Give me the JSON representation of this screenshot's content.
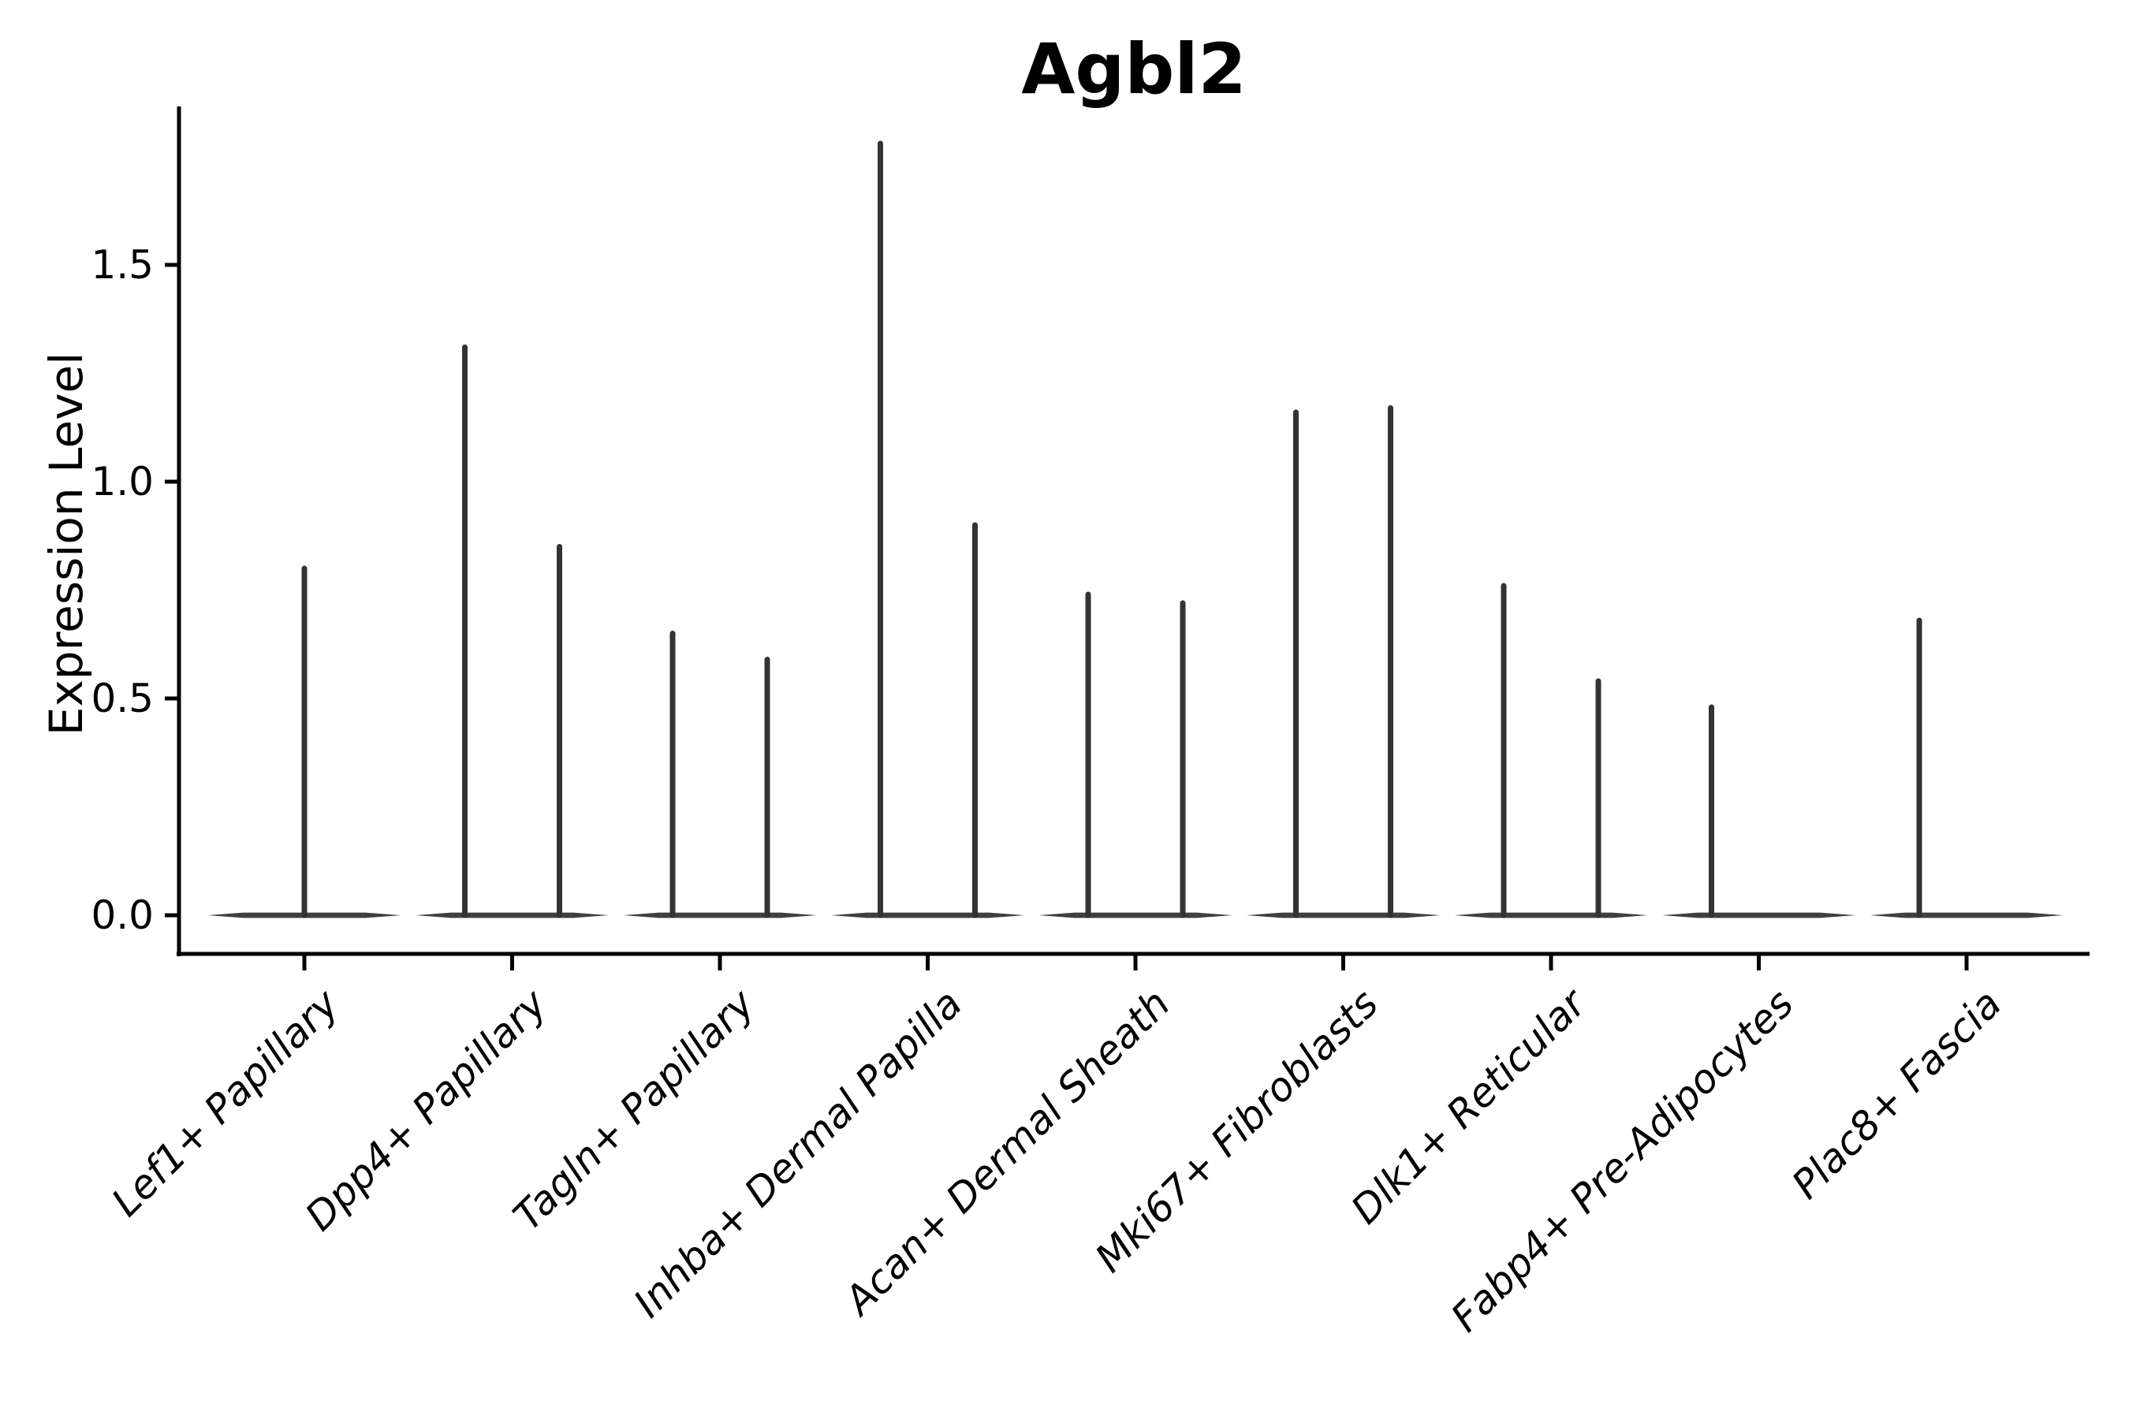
{
  "chart_data": {
    "type": "violin",
    "title": "Agbl2",
    "ylabel": "Expression Level",
    "xlabel": "",
    "y_axis": {
      "tick_values": [
        0.0,
        0.5,
        1.0,
        1.5
      ],
      "tick_labels": [
        "0.0",
        "0.5",
        "1.0",
        "1.5"
      ],
      "range": [
        -0.09,
        1.87
      ],
      "grid": false
    },
    "legend": null,
    "categories": [
      {
        "label": "Lef1+ Papillary",
        "spikes": [
          {
            "pos": "center",
            "value": 0.8
          }
        ]
      },
      {
        "label": "Dpp4+ Papillary",
        "spikes": [
          {
            "pos": "left",
            "value": 1.31
          },
          {
            "pos": "right",
            "value": 0.85
          }
        ]
      },
      {
        "label": "Tagln+ Papillary",
        "spikes": [
          {
            "pos": "left",
            "value": 0.65
          },
          {
            "pos": "right",
            "value": 0.59
          }
        ]
      },
      {
        "label": "Inhba+ Dermal Papilla",
        "spikes": [
          {
            "pos": "left",
            "value": 1.78
          },
          {
            "pos": "right",
            "value": 0.9
          }
        ]
      },
      {
        "label": "Acan+ Dermal Sheath",
        "spikes": [
          {
            "pos": "left",
            "value": 0.74
          },
          {
            "pos": "right",
            "value": 0.72
          }
        ]
      },
      {
        "label": "Mki67+ Fibroblasts",
        "spikes": [
          {
            "pos": "left",
            "value": 1.16
          },
          {
            "pos": "right",
            "value": 1.17
          }
        ]
      },
      {
        "label": "Dlk1+ Reticular",
        "spikes": [
          {
            "pos": "left",
            "value": 0.76
          },
          {
            "pos": "right",
            "value": 0.54
          }
        ]
      },
      {
        "label": "Fabp4+ Pre-Adipocytes",
        "spikes": [
          {
            "pos": "left",
            "value": 0.48
          }
        ]
      },
      {
        "label": "Plac8+ Fascia",
        "spikes": [
          {
            "pos": "left",
            "value": 0.68
          }
        ]
      }
    ],
    "colors": {
      "violin_line": "#333333",
      "baseline": "#3f3f3f",
      "axis": "#000000",
      "text": "#000000",
      "background": "#ffffff"
    },
    "style": {
      "x_tick_label_rotation_deg": 45,
      "x_tick_label_italic": true,
      "spines": [
        "left",
        "bottom"
      ]
    }
  }
}
